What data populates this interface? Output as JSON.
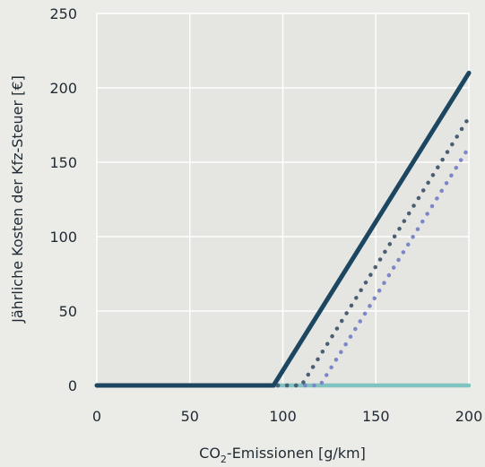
{
  "chart_data": {
    "type": "line",
    "title": "",
    "xlabel": "CO2-Emissionen [g/km]",
    "xlabel_parts": {
      "pre": "CO",
      "sub": "2",
      "post": "-Emissionen [g/km]"
    },
    "ylabel": "Jährliche Kosten der Kfz-Steuer [€]",
    "xlim": [
      0,
      200
    ],
    "ylim": [
      0,
      250
    ],
    "xticks": [
      0,
      50,
      100,
      150,
      200
    ],
    "yticks": [
      0,
      50,
      100,
      150,
      200,
      250
    ],
    "grid": true,
    "legend": "none",
    "series": [
      {
        "color": "#7fc4c0",
        "style": "solid",
        "x": [
          0,
          200
        ],
        "y": [
          0,
          0
        ]
      },
      {
        "color": "#7f86c8",
        "style": "dotted",
        "x": [
          0,
          120,
          200
        ],
        "y": [
          0,
          0,
          160
        ]
      },
      {
        "color": "#4a5f73",
        "style": "dotted",
        "x": [
          0,
          110,
          200
        ],
        "y": [
          0,
          0,
          180
        ]
      },
      {
        "color": "#1d4661",
        "style": "solid",
        "x": [
          0,
          95,
          200
        ],
        "y": [
          0,
          0,
          210
        ]
      }
    ]
  }
}
